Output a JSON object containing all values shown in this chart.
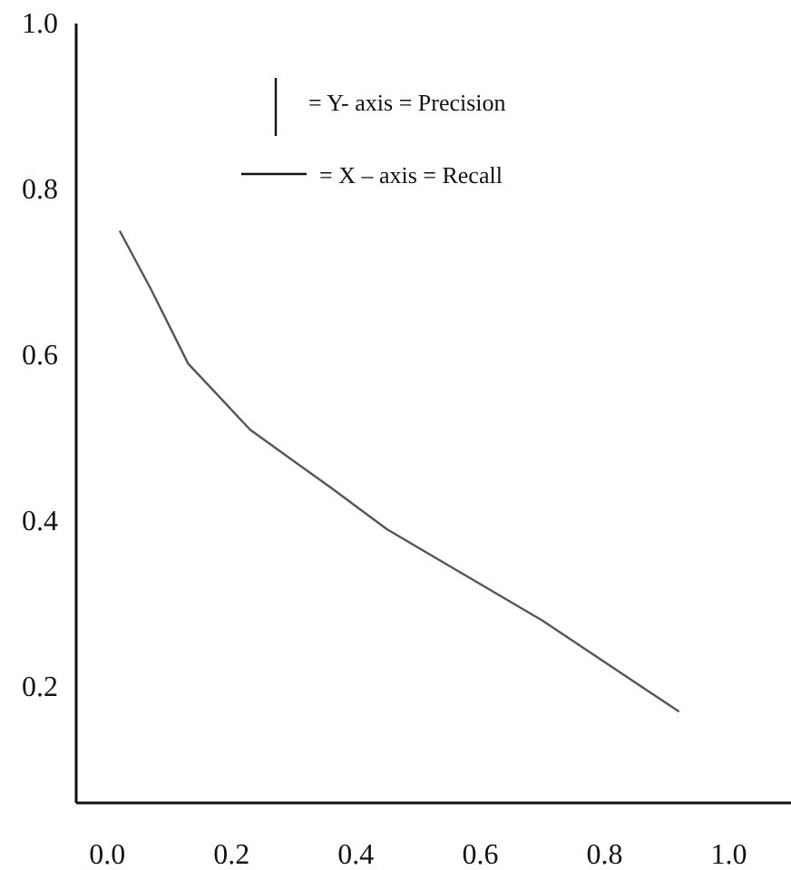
{
  "chart_data": {
    "type": "line",
    "x": [
      0.02,
      0.07,
      0.13,
      0.23,
      0.36,
      0.45,
      0.7,
      0.92
    ],
    "series": [
      {
        "color": "#555555",
        "values": [
          0.75,
          0.68,
          0.59,
          0.51,
          0.44,
          0.39,
          0.28,
          0.17
        ]
      }
    ],
    "xlim": [
      -0.05,
      1.1
    ],
    "ylim": [
      0.06,
      1.0
    ],
    "xticks": [
      {
        "value": 0,
        "label": "0.0"
      },
      0.2,
      0.4,
      0.6,
      0.8,
      {
        "value": 1,
        "label": "1.0"
      }
    ],
    "yticks": [
      0.2,
      0.4,
      0.6,
      0.8,
      {
        "value": 1,
        "label": "1.0"
      }
    ],
    "grid": false,
    "marker": "none",
    "line_style": "solid",
    "annotations": [
      "= Y- axis = Precision",
      "= X – axis = Recall"
    ]
  }
}
